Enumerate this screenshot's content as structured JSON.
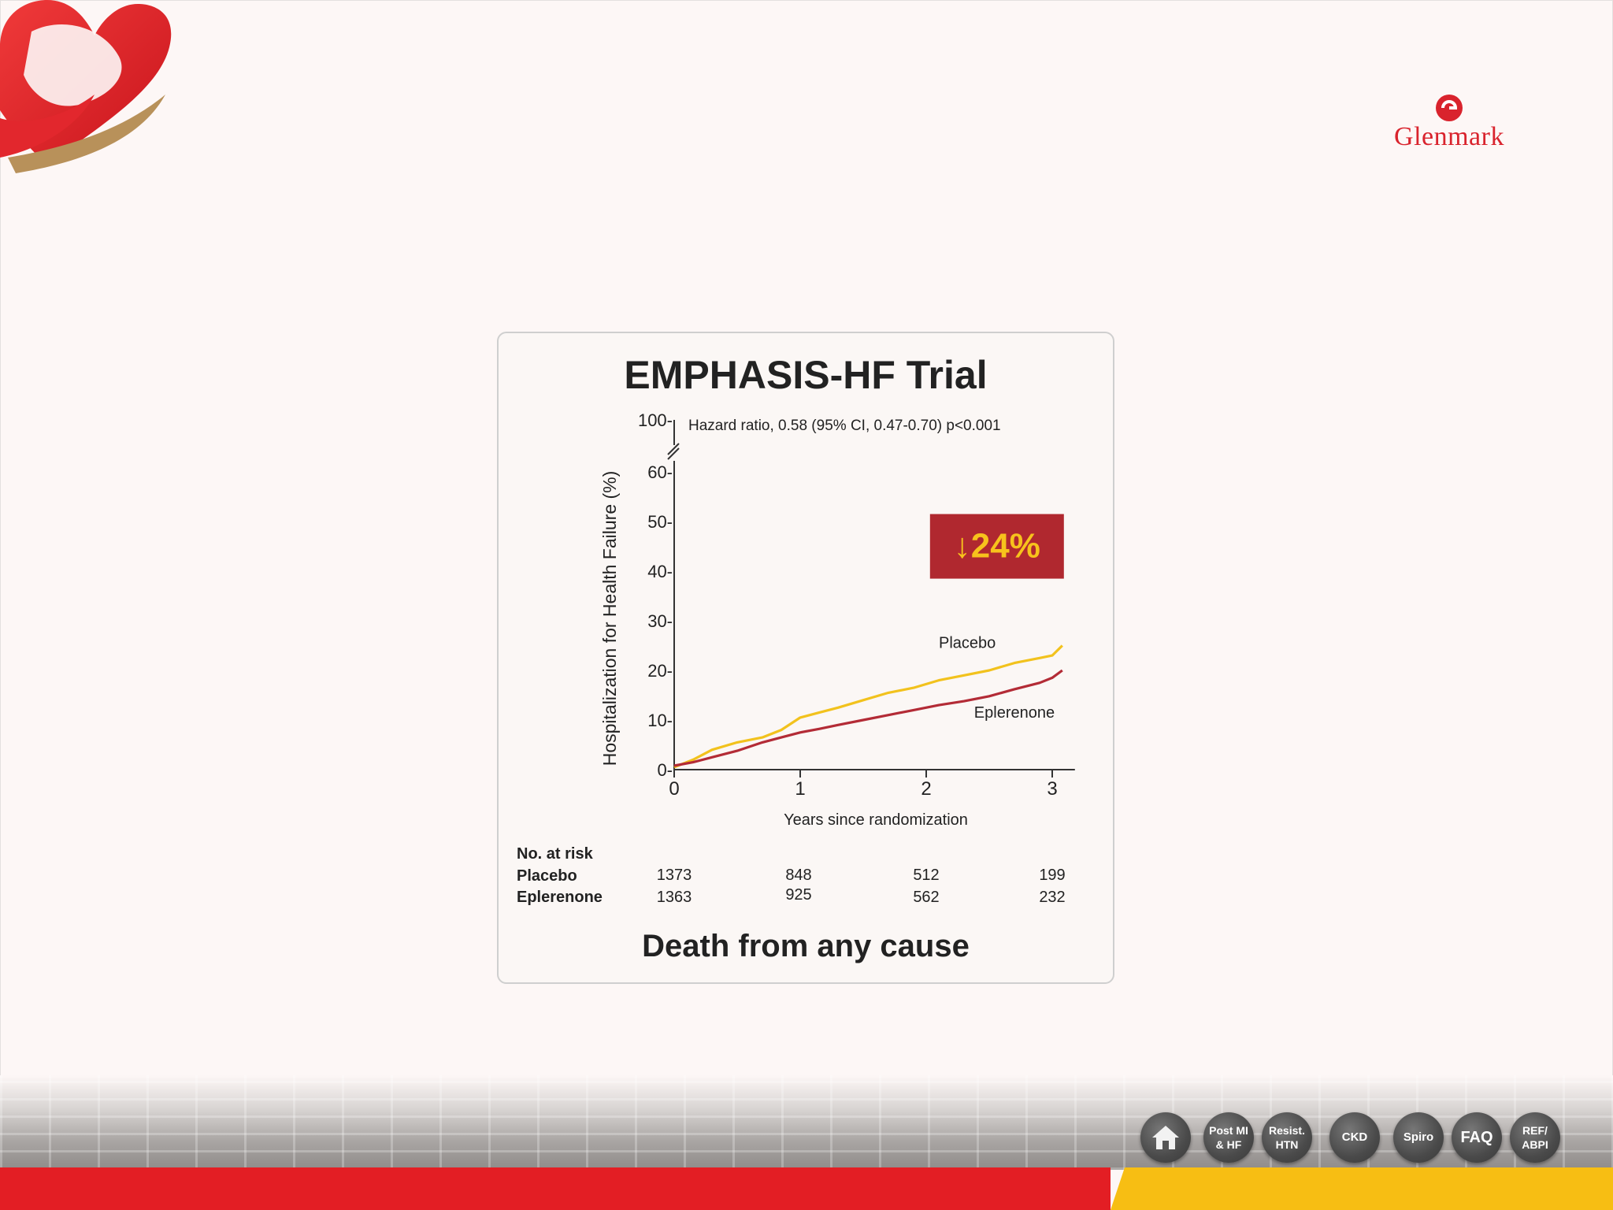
{
  "brand": {
    "name": "Glenmark",
    "colors": {
      "red": "#d9232d",
      "yellow": "#f7be13"
    }
  },
  "card": {
    "title": "EMPHASIS-HF Trial",
    "subtitle": "Death from any cause"
  },
  "badge": {
    "arrow": "↓",
    "value": "24%"
  },
  "chart_data": {
    "type": "line",
    "title": "EMPHASIS-HF Trial",
    "ylabel": "Hospitalization for Health Failure (%)",
    "xlabel": "Years since randomization",
    "annotation": "Hazard ratio, 0.58 (95% CI, 0.47-0.70) p<0.001",
    "x_ticks": [
      "0",
      "1",
      "2",
      "3"
    ],
    "y_ticks": [
      "0-",
      "10-",
      "20-",
      "30-",
      "40-",
      "50-",
      "60-",
      "100-"
    ],
    "xlim": [
      0,
      3.2
    ],
    "ylim": [
      0,
      100
    ],
    "axis_break": [
      60,
      100
    ],
    "grid": false,
    "series": [
      {
        "name": "Placebo",
        "color": "#f2c21d",
        "x": [
          0,
          0.15,
          0.3,
          0.5,
          0.7,
          0.85,
          1.0,
          1.15,
          1.3,
          1.5,
          1.7,
          1.9,
          2.1,
          2.3,
          2.5,
          2.7,
          2.9,
          3.0,
          3.08
        ],
        "y": [
          0.5,
          2,
          4,
          5.5,
          6.5,
          8,
          10.5,
          11.5,
          12.5,
          14,
          15.5,
          16.5,
          18,
          19,
          20,
          21.5,
          22.5,
          23,
          25
        ]
      },
      {
        "name": "Eplerenone",
        "color": "#b32b36",
        "x": [
          0,
          0.15,
          0.3,
          0.5,
          0.7,
          0.85,
          1.0,
          1.15,
          1.3,
          1.5,
          1.7,
          1.9,
          2.1,
          2.3,
          2.5,
          2.7,
          2.9,
          3.0,
          3.08
        ],
        "y": [
          0.8,
          1.5,
          2.5,
          3.8,
          5.5,
          6.5,
          7.5,
          8.2,
          9,
          10,
          11,
          12,
          13,
          13.8,
          14.8,
          16.2,
          17.5,
          18.5,
          20
        ]
      }
    ]
  },
  "risk_table": {
    "heading": "No. at risk",
    "rows": [
      {
        "label": "Placebo",
        "values": [
          "1373",
          "848",
          "512",
          "199"
        ]
      },
      {
        "label": "Eplerenone",
        "values": [
          "1363",
          "925",
          "562",
          "232"
        ]
      }
    ]
  },
  "nav": [
    {
      "id": "home",
      "label": ""
    },
    {
      "id": "post-mi-hf",
      "line1": "Post MI",
      "line2": "& HF"
    },
    {
      "id": "resist-htn",
      "line1": "Resist.",
      "line2": "HTN"
    },
    {
      "id": "ckd",
      "line1": "CKD"
    },
    {
      "id": "spiro",
      "line1": "Spiro"
    },
    {
      "id": "faq",
      "line1": "FAQ"
    },
    {
      "id": "ref-abpi",
      "line1": "REF/",
      "line2": "ABPI"
    }
  ]
}
